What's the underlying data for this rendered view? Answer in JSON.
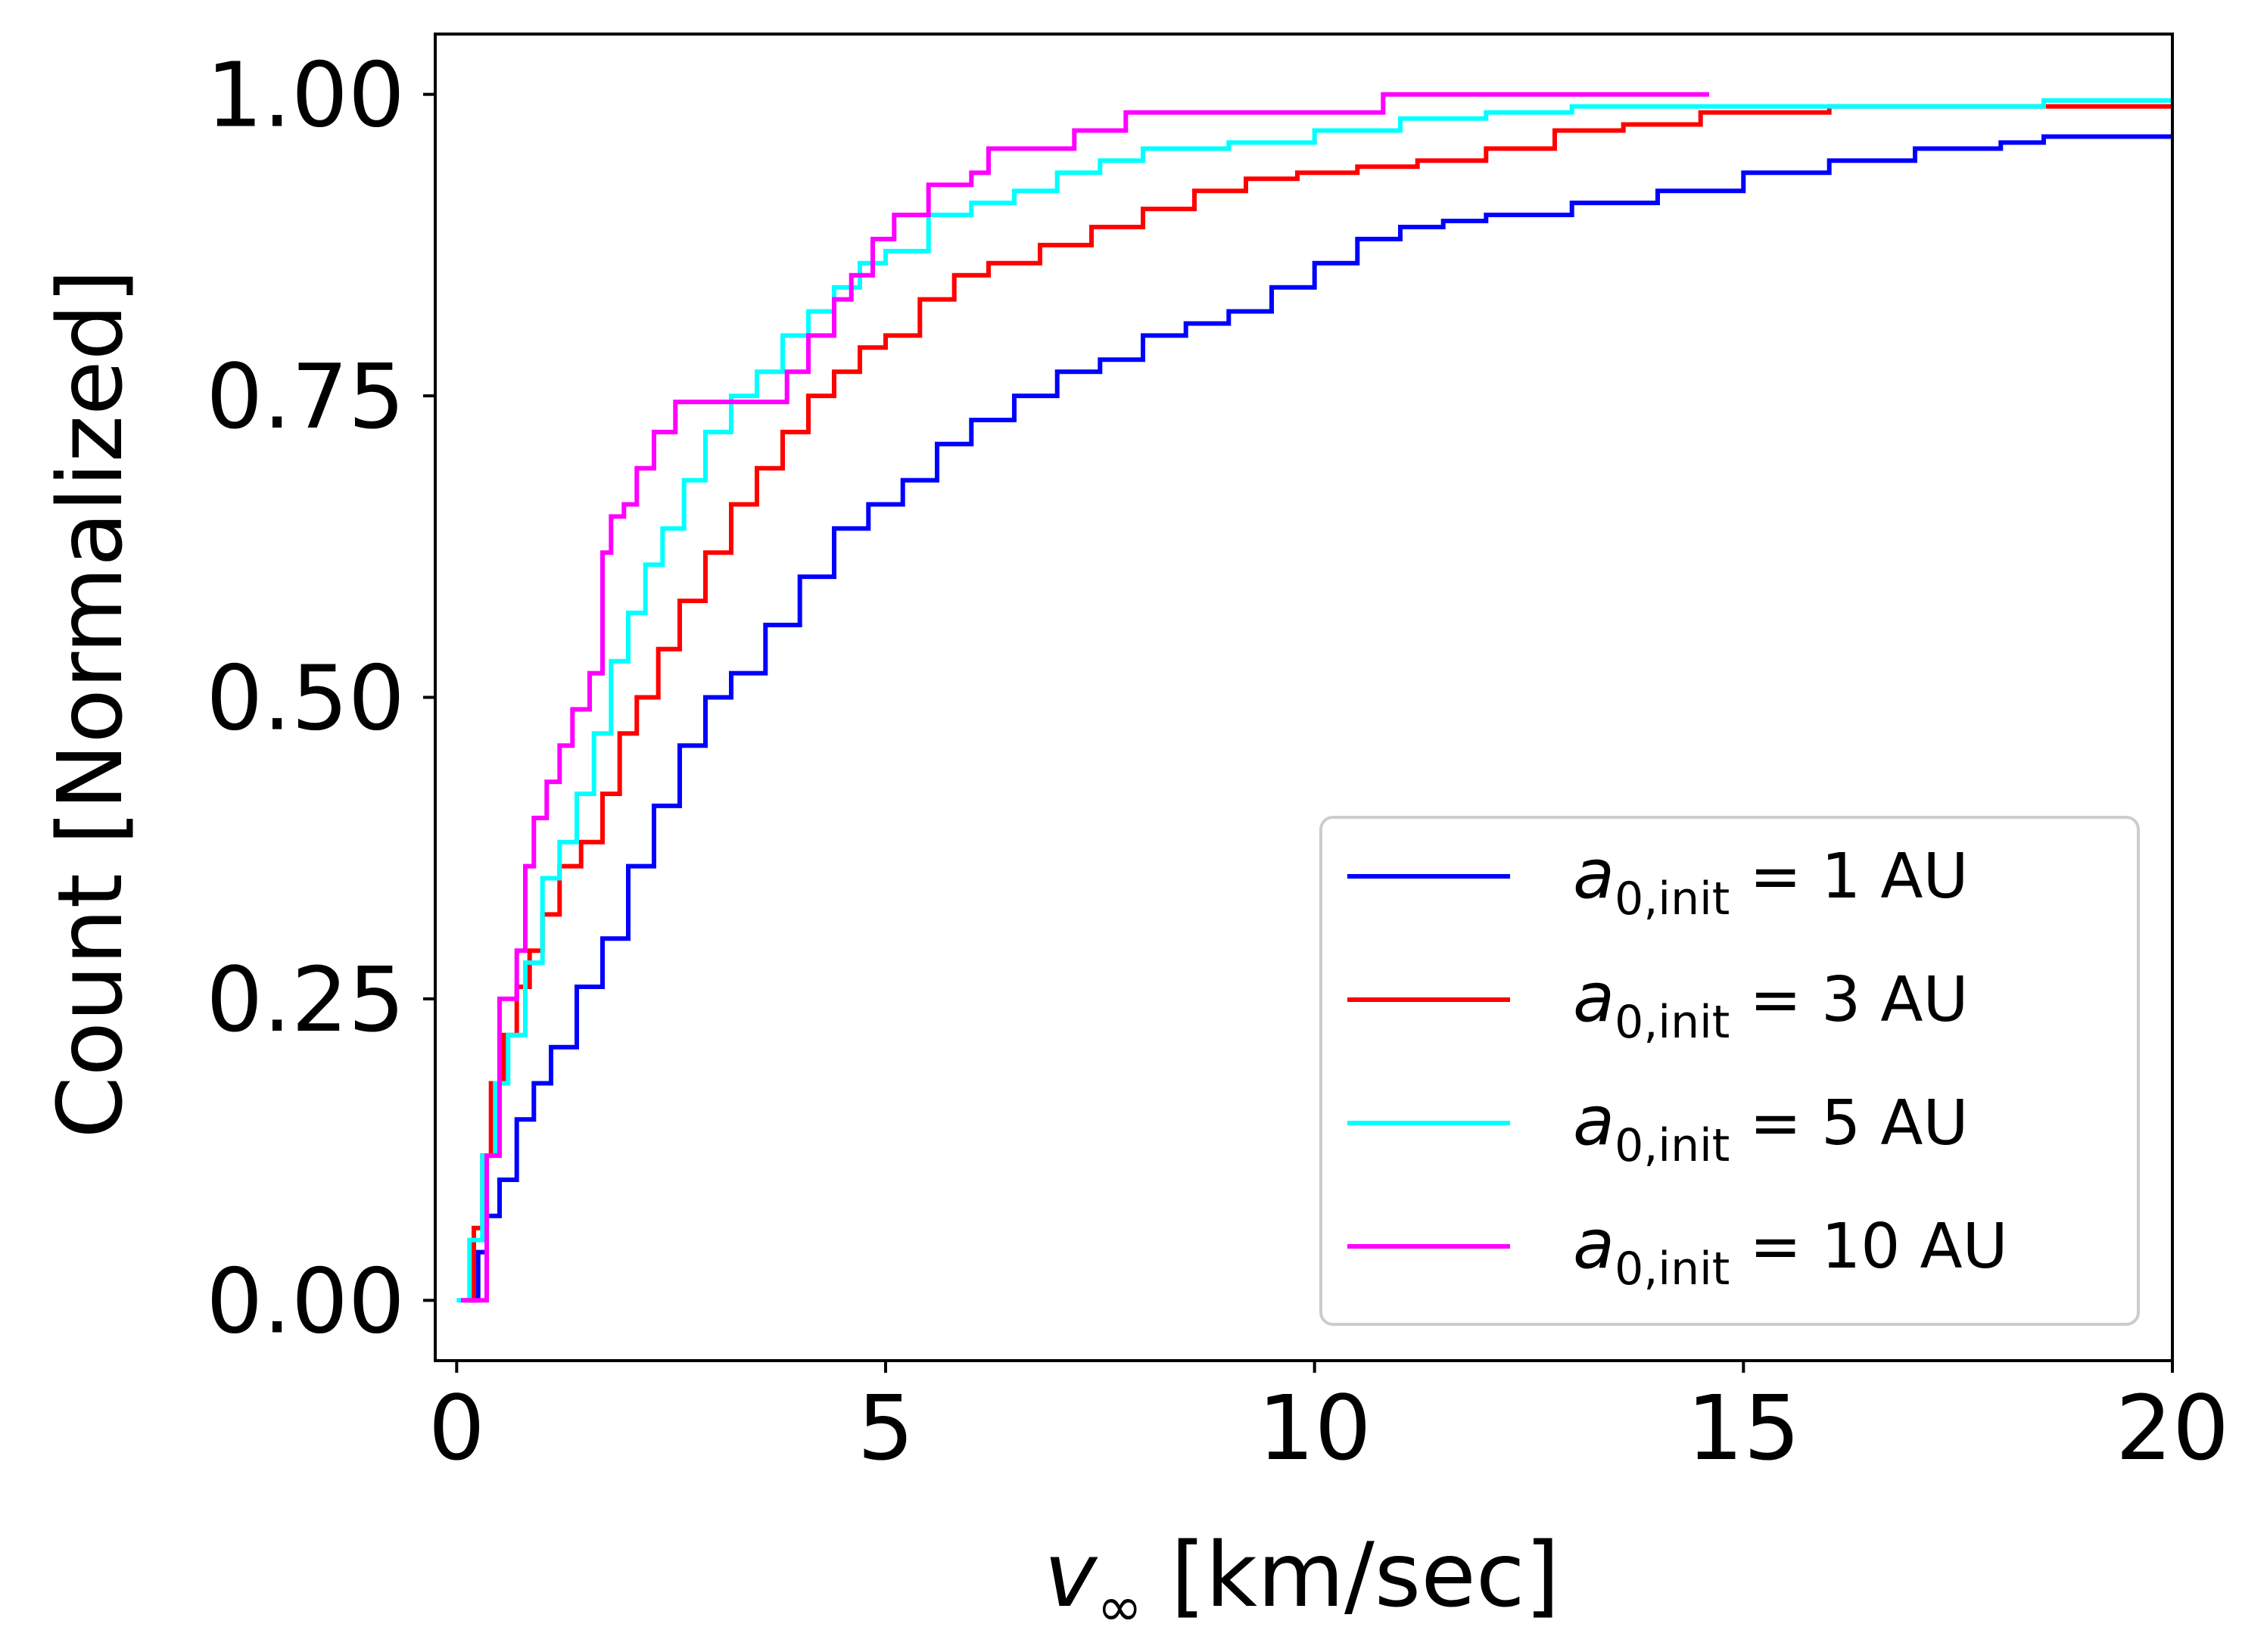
{
  "chart_data": {
    "type": "line",
    "step": true,
    "xlabel": {
      "symbol": "v",
      "subscript": "∞",
      "units": "[km/sec]"
    },
    "ylabel": "Count [Normalized]",
    "xlim": [
      -0.25,
      20
    ],
    "ylim": [
      -0.05,
      1.05
    ],
    "xticks": [
      0,
      5,
      10,
      15,
      20
    ],
    "xtick_labels": [
      "0",
      "5",
      "10",
      "15",
      "20"
    ],
    "yticks": [
      0.0,
      0.25,
      0.5,
      0.75,
      1.0
    ],
    "ytick_labels": [
      "0.00",
      "0.25",
      "0.50",
      "0.75",
      "1.00"
    ],
    "legend_position": "lower-right",
    "series": [
      {
        "name": "a0,init = 1 AU",
        "label_var": "a",
        "label_sub": "0,init",
        "label_rest": " = 1 AU",
        "color": "#0000ff",
        "x": [
          0.15,
          0.25,
          0.35,
          0.5,
          0.7,
          0.9,
          1.1,
          1.4,
          1.7,
          2.0,
          2.3,
          2.6,
          2.9,
          3.2,
          3.6,
          4.0,
          4.4,
          4.8,
          5.2,
          5.6,
          6.0,
          6.5,
          7.0,
          7.5,
          8.0,
          8.5,
          9.0,
          9.5,
          10.0,
          10.5,
          11.0,
          11.5,
          12.0,
          13.0,
          14.0,
          15.0,
          16.0,
          17.0,
          18.0,
          18.5,
          20.0
        ],
        "y": [
          0.0,
          0.04,
          0.07,
          0.1,
          0.15,
          0.18,
          0.21,
          0.26,
          0.3,
          0.36,
          0.41,
          0.46,
          0.5,
          0.52,
          0.56,
          0.6,
          0.64,
          0.66,
          0.68,
          0.71,
          0.73,
          0.75,
          0.77,
          0.78,
          0.8,
          0.81,
          0.82,
          0.84,
          0.86,
          0.88,
          0.89,
          0.895,
          0.9,
          0.91,
          0.92,
          0.935,
          0.945,
          0.955,
          0.96,
          0.965,
          0.965
        ]
      },
      {
        "name": "a0,init = 3 AU",
        "label_var": "a",
        "label_sub": "0,init",
        "label_rest": " = 3 AU",
        "color": "#ff0000",
        "x": [
          0.1,
          0.2,
          0.3,
          0.4,
          0.55,
          0.7,
          0.85,
          1.0,
          1.2,
          1.45,
          1.7,
          1.9,
          2.1,
          2.35,
          2.6,
          2.9,
          3.2,
          3.5,
          3.8,
          4.1,
          4.4,
          4.7,
          5.0,
          5.4,
          5.8,
          6.2,
          6.8,
          7.4,
          8.0,
          8.6,
          9.2,
          9.8,
          10.5,
          11.2,
          12.0,
          12.8,
          13.6,
          14.5,
          16.0,
          18.0,
          20.0
        ],
        "y": [
          0.0,
          0.06,
          0.12,
          0.18,
          0.22,
          0.26,
          0.29,
          0.32,
          0.36,
          0.38,
          0.42,
          0.47,
          0.5,
          0.54,
          0.58,
          0.62,
          0.66,
          0.69,
          0.72,
          0.75,
          0.77,
          0.79,
          0.8,
          0.83,
          0.85,
          0.86,
          0.875,
          0.89,
          0.905,
          0.92,
          0.93,
          0.935,
          0.94,
          0.945,
          0.955,
          0.97,
          0.975,
          0.985,
          0.99,
          0.99,
          0.99
        ]
      },
      {
        "name": "a0,init = 5 AU",
        "label_var": "a",
        "label_sub": "0,init",
        "label_rest": " = 5 AU",
        "color": "#00ffff",
        "x": [
          0.0,
          0.15,
          0.3,
          0.45,
          0.6,
          0.8,
          1.0,
          1.2,
          1.4,
          1.6,
          1.8,
          2.0,
          2.2,
          2.4,
          2.65,
          2.9,
          3.2,
          3.5,
          3.8,
          4.1,
          4.4,
          4.7,
          5.0,
          5.5,
          6.0,
          6.5,
          7.0,
          7.5,
          8.0,
          9.0,
          10.0,
          11.0,
          12.0,
          13.0,
          15.0,
          17.0,
          18.5,
          20.0
        ],
        "y": [
          0.0,
          0.05,
          0.12,
          0.18,
          0.22,
          0.28,
          0.35,
          0.38,
          0.42,
          0.47,
          0.53,
          0.57,
          0.61,
          0.64,
          0.68,
          0.72,
          0.75,
          0.77,
          0.8,
          0.82,
          0.84,
          0.86,
          0.87,
          0.9,
          0.91,
          0.92,
          0.935,
          0.945,
          0.955,
          0.96,
          0.97,
          0.98,
          0.985,
          0.99,
          0.99,
          0.99,
          0.995,
          0.995
        ]
      },
      {
        "name": "a0,init = 10 AU",
        "label_var": "a",
        "label_sub": "0,init",
        "label_rest": " = 10 AU",
        "color": "#ff00ff",
        "x": [
          0.05,
          0.2,
          0.35,
          0.5,
          0.7,
          0.8,
          0.9,
          1.05,
          1.2,
          1.35,
          1.55,
          1.7,
          1.8,
          1.95,
          2.1,
          2.3,
          2.55,
          3.0,
          3.5,
          3.85,
          4.1,
          4.4,
          4.6,
          4.85,
          5.1,
          5.5,
          6.0,
          6.2,
          6.8,
          7.2,
          7.8,
          9.5,
          10.8,
          12.5,
          14.6
        ],
        "y": [
          0.0,
          0.0,
          0.12,
          0.25,
          0.29,
          0.36,
          0.4,
          0.43,
          0.46,
          0.49,
          0.52,
          0.62,
          0.65,
          0.66,
          0.69,
          0.72,
          0.745,
          0.745,
          0.745,
          0.77,
          0.8,
          0.83,
          0.85,
          0.88,
          0.9,
          0.925,
          0.935,
          0.955,
          0.955,
          0.97,
          0.985,
          0.985,
          1.0,
          1.0,
          1.0
        ]
      }
    ]
  }
}
